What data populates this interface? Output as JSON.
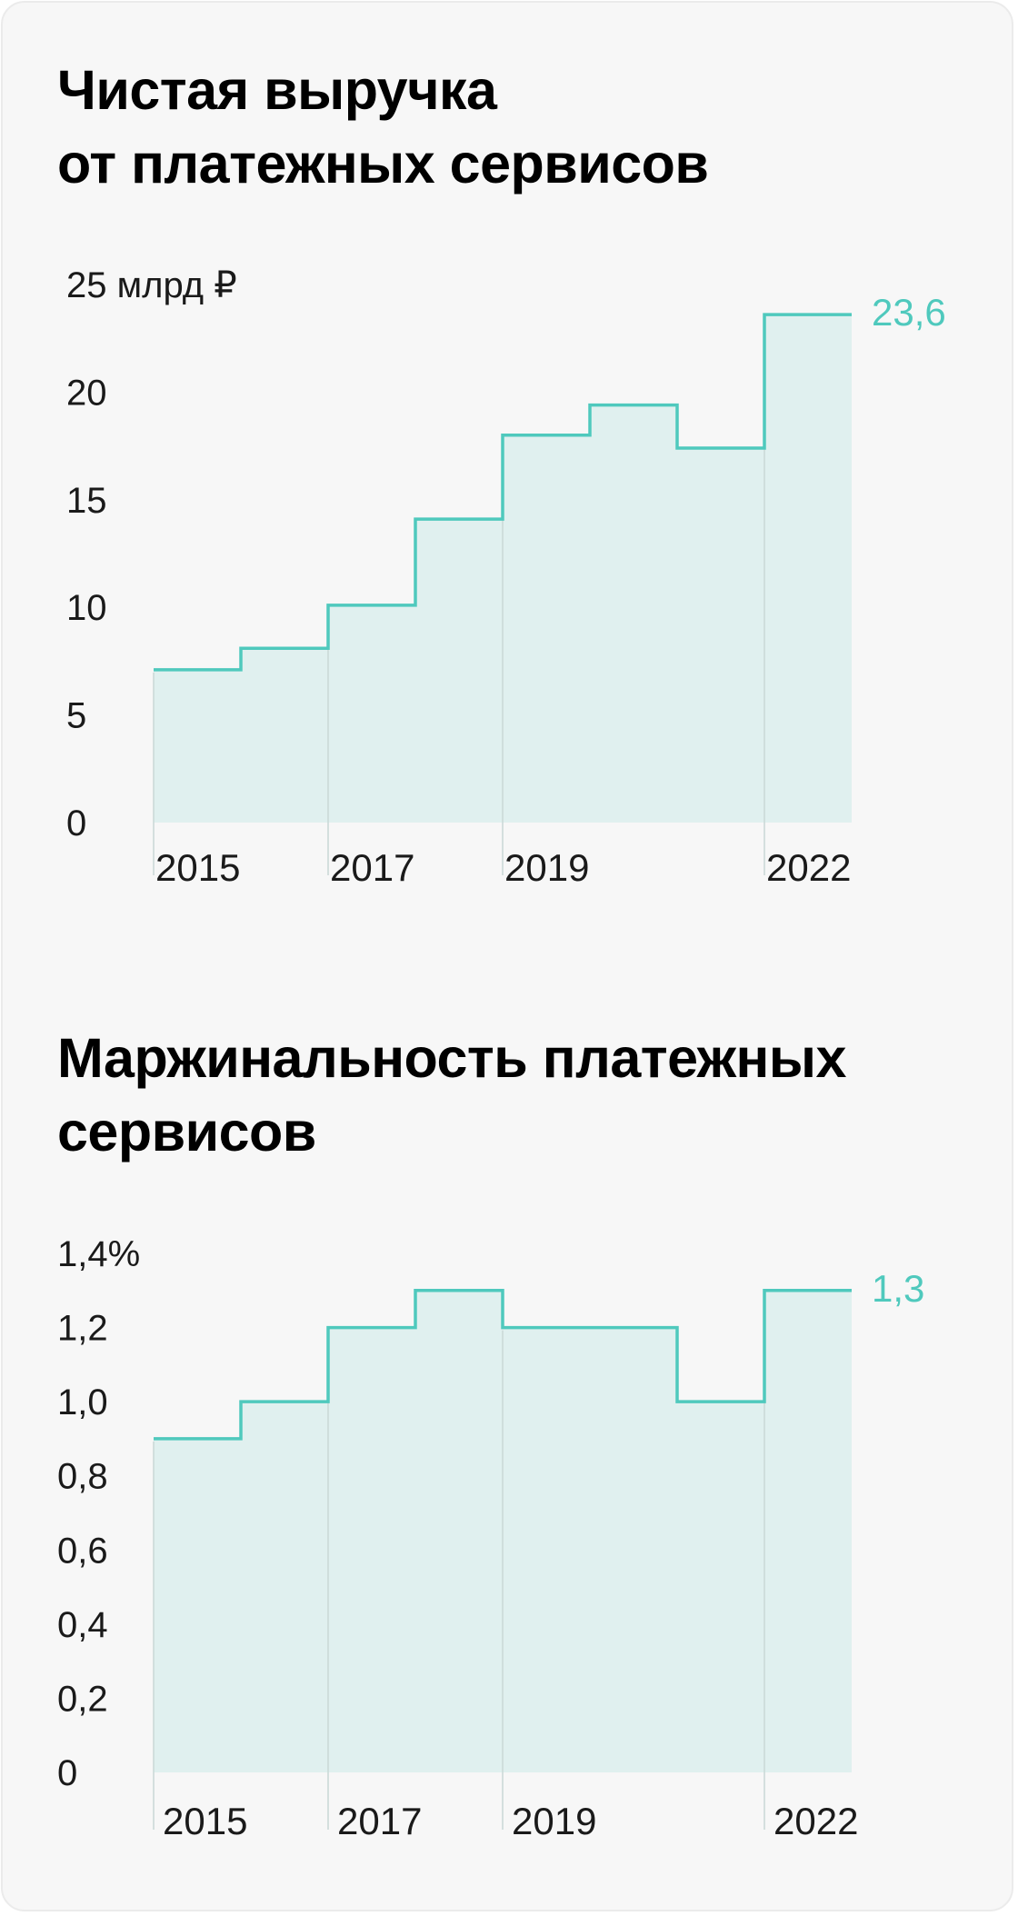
{
  "colors": {
    "line": "#4fc9bd",
    "fill": "#e0f0ef",
    "divider": "#c9d7d6",
    "text": "#1a1a1a"
  },
  "charts": [
    {
      "title_lines": [
        "Чистая выручка",
        "от платежных сервисов"
      ]
    },
    {
      "title_lines": [
        "Маржинальность платежных",
        "сервисов"
      ]
    }
  ],
  "chart_data": [
    {
      "type": "area",
      "step": true,
      "title": "Чистая выручка от платежных сервисов",
      "x": [
        "2015",
        "2016",
        "2017",
        "2018",
        "2019",
        "2020",
        "2021",
        "2022"
      ],
      "values": [
        7.1,
        8.1,
        10.1,
        14.1,
        18.0,
        19.4,
        17.4,
        23.6
      ],
      "ylim": [
        0,
        25
      ],
      "y_ticks": [
        "0",
        "5",
        "10",
        "15",
        "20",
        "25 млрд ₽"
      ],
      "x_tick_labels": [
        "2015",
        "2017",
        "2019",
        "2022"
      ],
      "value_label": "23,6",
      "grid": false
    },
    {
      "type": "area",
      "step": true,
      "title": "Маржинальность платежных сервисов",
      "x": [
        "2015",
        "2016",
        "2017",
        "2018",
        "2019",
        "2020",
        "2021",
        "2022"
      ],
      "values": [
        0.9,
        1.0,
        1.2,
        1.3,
        1.2,
        1.2,
        1.0,
        1.3
      ],
      "ylim": [
        0,
        1.4
      ],
      "y_ticks": [
        "0",
        "0,2",
        "0,4",
        "0,6",
        "0,8",
        "1,0",
        "1,2",
        "1,4%"
      ],
      "x_tick_labels": [
        "2015",
        "2017",
        "2019",
        "2022"
      ],
      "value_label": "1,3",
      "grid": false
    }
  ]
}
